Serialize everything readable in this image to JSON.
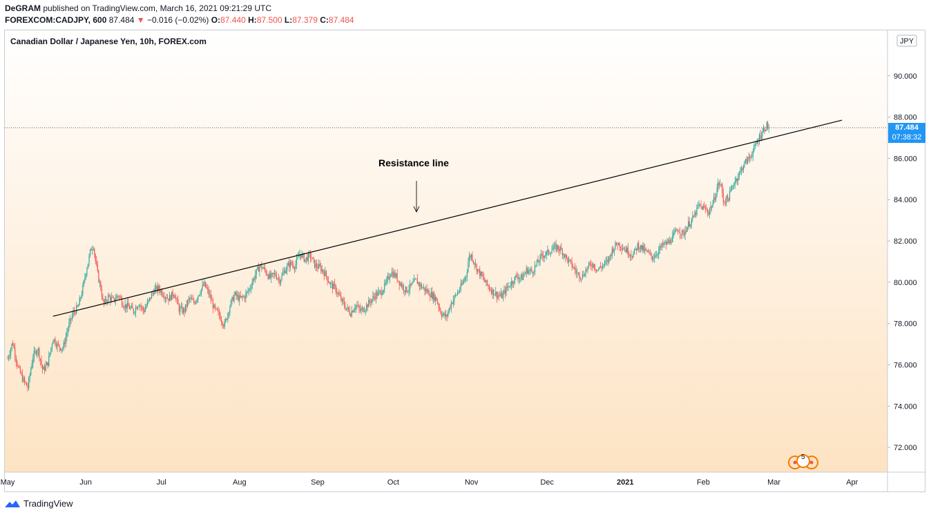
{
  "publish": {
    "author": "DeGRAM",
    "text": "published on TradingView.com, March 16, 2021 09:21:29 UTC"
  },
  "quote": {
    "symbol": "FOREXCOM:CADJPY, 600",
    "last": "87.484",
    "change": "−0.016 (−0.02%)",
    "o_label": "O:",
    "o": "87.440",
    "h_label": "H:",
    "h": "87.500",
    "l_label": "L:",
    "l": "87.379",
    "c_label": "C:",
    "c": "87.484",
    "down_color": "#ef5350",
    "up_color": "#26a69a"
  },
  "footer": {
    "brand": "TradingView"
  },
  "chart_data": {
    "type": "line",
    "title": "Canadian Dollar / Japanese Yen, 10h, FOREX.com",
    "currency": "JPY",
    "ylim": [
      70.8,
      92.2
    ],
    "y_ticks": [
      "72.000",
      "74.000",
      "76.000",
      "78.000",
      "80.000",
      "82.000",
      "84.000",
      "86.000",
      "88.000",
      "90.000"
    ],
    "x_ticks": [
      "May",
      "Jun",
      "Jul",
      "Aug",
      "Sep",
      "Oct",
      "Nov",
      "Dec",
      "2021",
      "Feb",
      "Mar",
      "Apr"
    ],
    "x_tick_bold": [
      false,
      false,
      false,
      false,
      false,
      false,
      false,
      false,
      true,
      false,
      false,
      false
    ],
    "x_tick_day": [
      0,
      31,
      61,
      92,
      123,
      153,
      184,
      214,
      245,
      276,
      304,
      335
    ],
    "x_start": "2020-05-01",
    "price_label": "87.484",
    "countdown": "07:38:32",
    "annotation": "Resistance line",
    "trendline": [
      [
        18,
        78.35
      ],
      [
        331,
        87.85
      ]
    ],
    "price_path": [
      [
        0,
        76.3
      ],
      [
        2,
        77.1
      ],
      [
        4,
        75.9
      ],
      [
        6,
        75.3
      ],
      [
        8,
        74.9
      ],
      [
        10,
        76.4
      ],
      [
        12,
        76.8
      ],
      [
        14,
        75.7
      ],
      [
        16,
        76.1
      ],
      [
        18,
        77.3
      ],
      [
        20,
        76.9
      ],
      [
        22,
        76.8
      ],
      [
        24,
        77.8
      ],
      [
        26,
        78.5
      ],
      [
        28,
        78.8
      ],
      [
        30,
        79.8
      ],
      [
        31,
        80.5
      ],
      [
        32,
        81.0
      ],
      [
        33,
        81.6
      ],
      [
        34,
        81.8
      ],
      [
        35,
        80.9
      ],
      [
        36,
        80.2
      ],
      [
        37,
        79.7
      ],
      [
        38,
        78.9
      ],
      [
        40,
        79.3
      ],
      [
        42,
        79.1
      ],
      [
        44,
        79.4
      ],
      [
        46,
        78.9
      ],
      [
        48,
        78.8
      ],
      [
        50,
        78.6
      ],
      [
        52,
        79.0
      ],
      [
        54,
        78.6
      ],
      [
        56,
        79.1
      ],
      [
        58,
        79.6
      ],
      [
        60,
        79.7
      ],
      [
        62,
        79.4
      ],
      [
        64,
        79.2
      ],
      [
        66,
        79.5
      ],
      [
        68,
        78.7
      ],
      [
        70,
        78.6
      ],
      [
        72,
        79.2
      ],
      [
        74,
        79.0
      ],
      [
        76,
        79.5
      ],
      [
        78,
        79.9
      ],
      [
        80,
        79.4
      ],
      [
        82,
        78.7
      ],
      [
        84,
        78.4
      ],
      [
        86,
        77.9
      ],
      [
        88,
        78.8
      ],
      [
        90,
        79.4
      ],
      [
        92,
        79.2
      ],
      [
        94,
        79.3
      ],
      [
        96,
        79.7
      ],
      [
        98,
        80.3
      ],
      [
        100,
        80.8
      ],
      [
        102,
        80.6
      ],
      [
        104,
        80.2
      ],
      [
        106,
        80.4
      ],
      [
        108,
        80.1
      ],
      [
        110,
        80.6
      ],
      [
        112,
        80.9
      ],
      [
        114,
        80.8
      ],
      [
        116,
        81.4
      ],
      [
        118,
        81.1
      ],
      [
        120,
        81.3
      ],
      [
        122,
        80.8
      ],
      [
        124,
        80.7
      ],
      [
        126,
        80.4
      ],
      [
        128,
        79.9
      ],
      [
        130,
        79.7
      ],
      [
        132,
        79.2
      ],
      [
        134,
        78.8
      ],
      [
        136,
        78.5
      ],
      [
        138,
        78.9
      ],
      [
        140,
        78.6
      ],
      [
        142,
        78.8
      ],
      [
        144,
        79.1
      ],
      [
        146,
        79.4
      ],
      [
        148,
        79.5
      ],
      [
        150,
        79.9
      ],
      [
        152,
        80.5
      ],
      [
        154,
        80.3
      ],
      [
        156,
        79.9
      ],
      [
        158,
        79.6
      ],
      [
        160,
        79.8
      ],
      [
        162,
        80.1
      ],
      [
        164,
        79.8
      ],
      [
        166,
        79.6
      ],
      [
        168,
        79.4
      ],
      [
        170,
        79.2
      ],
      [
        172,
        78.5
      ],
      [
        174,
        78.3
      ],
      [
        176,
        79.0
      ],
      [
        178,
        79.4
      ],
      [
        180,
        79.8
      ],
      [
        182,
        80.4
      ],
      [
        183,
        81.2
      ],
      [
        184,
        81.3
      ],
      [
        186,
        80.7
      ],
      [
        188,
        80.3
      ],
      [
        190,
        79.9
      ],
      [
        192,
        79.6
      ],
      [
        194,
        79.4
      ],
      [
        196,
        79.3
      ],
      [
        198,
        79.7
      ],
      [
        200,
        80.0
      ],
      [
        202,
        80.3
      ],
      [
        204,
        80.2
      ],
      [
        206,
        80.6
      ],
      [
        208,
        80.5
      ],
      [
        210,
        80.9
      ],
      [
        212,
        81.3
      ],
      [
        214,
        81.4
      ],
      [
        216,
        81.6
      ],
      [
        218,
        81.7
      ],
      [
        220,
        81.5
      ],
      [
        222,
        81.1
      ],
      [
        224,
        80.8
      ],
      [
        226,
        80.4
      ],
      [
        228,
        80.3
      ],
      [
        230,
        80.7
      ],
      [
        232,
        80.9
      ],
      [
        234,
        80.6
      ],
      [
        236,
        80.8
      ],
      [
        238,
        81.0
      ],
      [
        240,
        81.6
      ],
      [
        242,
        81.9
      ],
      [
        244,
        81.7
      ],
      [
        246,
        81.5
      ],
      [
        248,
        81.3
      ],
      [
        250,
        81.8
      ],
      [
        252,
        81.6
      ],
      [
        254,
        81.4
      ],
      [
        256,
        81.2
      ],
      [
        258,
        81.5
      ],
      [
        260,
        81.8
      ],
      [
        262,
        81.9
      ],
      [
        264,
        82.2
      ],
      [
        266,
        82.6
      ],
      [
        268,
        82.3
      ],
      [
        270,
        82.8
      ],
      [
        272,
        83.1
      ],
      [
        274,
        83.7
      ],
      [
        276,
        83.6
      ],
      [
        278,
        83.4
      ],
      [
        280,
        83.9
      ],
      [
        282,
        84.8
      ],
      [
        283,
        84.7
      ],
      [
        284,
        83.9
      ],
      [
        286,
        84.1
      ],
      [
        288,
        84.8
      ],
      [
        290,
        85.2
      ],
      [
        292,
        85.7
      ],
      [
        294,
        86.0
      ],
      [
        296,
        86.4
      ],
      [
        298,
        87.0
      ],
      [
        300,
        87.4
      ],
      [
        301,
        87.6
      ],
      [
        302,
        87.5
      ]
    ]
  }
}
